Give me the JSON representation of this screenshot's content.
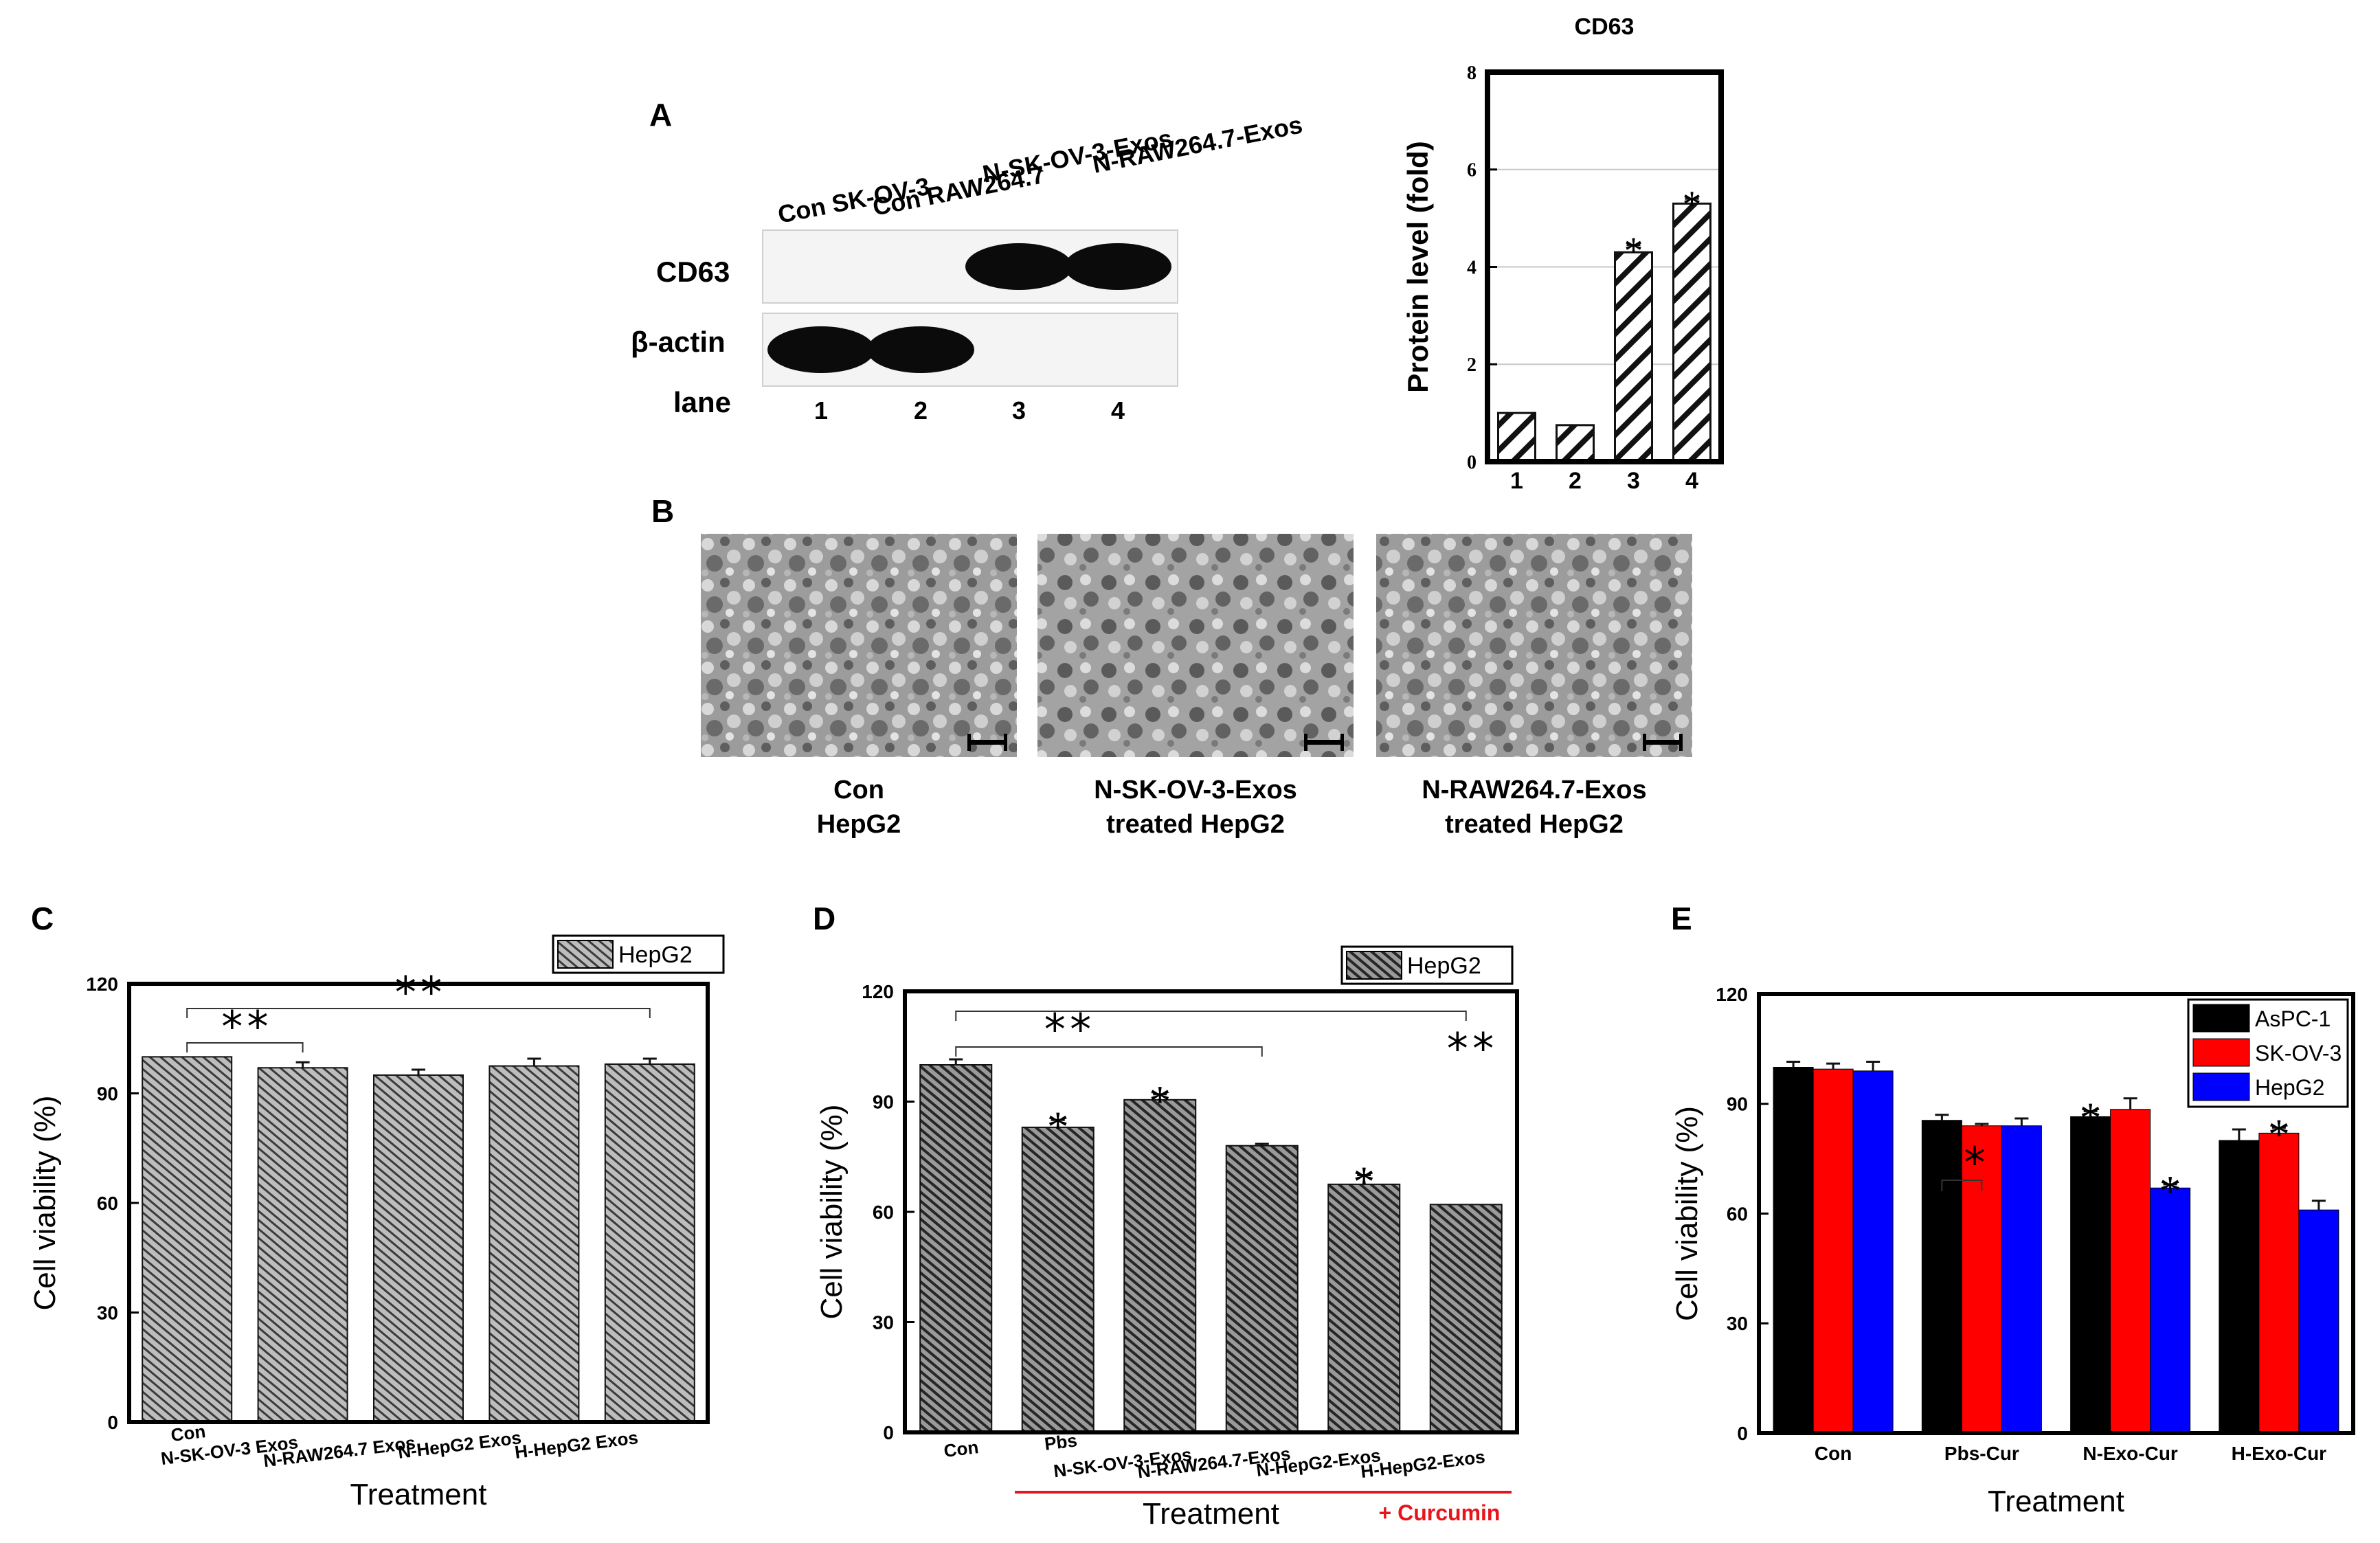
{
  "panel_labels": {
    "a": "A",
    "b": "B",
    "c": "C",
    "d": "D",
    "e": "E"
  },
  "blot": {
    "lane_names": [
      "Con SK-OV-3",
      "Con RAW264.7",
      "N-SK-OV-3-Exos",
      "N-RAW264.7-Exos"
    ],
    "row_labels": [
      "CD63",
      "β-actin"
    ],
    "lane_label": "lane",
    "lane_numbers": [
      "1",
      "2",
      "3",
      "4"
    ],
    "band_intensity": {
      "CD63": [
        0,
        0,
        1,
        1
      ],
      "beta_actin": [
        1,
        1,
        0,
        0
      ]
    }
  },
  "micrographs": {
    "captions": [
      [
        "Con",
        "HepG2"
      ],
      [
        "N-SK-OV-3-Exos",
        "treated HepG2"
      ],
      [
        "N-RAW264.7-Exos",
        "treated HepG2"
      ]
    ]
  },
  "chart_data": [
    {
      "id": "A-right",
      "type": "bar",
      "title": "CD63",
      "ylabel": "Protein level (fold)",
      "xlabel": "",
      "categories": [
        "1",
        "2",
        "3",
        "4"
      ],
      "values": [
        1.0,
        0.75,
        4.3,
        5.3
      ],
      "errors": [
        0,
        0,
        0.15,
        0.1
      ],
      "ylim": [
        0,
        8
      ],
      "yticks": [
        0,
        2,
        4,
        6,
        8
      ],
      "grid": true,
      "fill": "hatch",
      "annotations": [
        {
          "category": "3",
          "text": "*"
        },
        {
          "category": "4",
          "text": "*"
        }
      ]
    },
    {
      "id": "C",
      "type": "bar",
      "ylabel": "Cell viability (%)",
      "xlabel": "Treatment",
      "categories": [
        "Con",
        "N-SK-OV-3 Exos",
        "N-RAW264.7 Exos",
        "N-HepG2 Exos",
        "H-HepG2 Exos"
      ],
      "values": [
        100,
        97,
        95,
        97.5,
        98
      ],
      "errors": [
        0,
        1.5,
        1.5,
        2,
        1.5
      ],
      "ylim": [
        0,
        120
      ],
      "yticks": [
        0,
        30,
        60,
        90,
        120
      ],
      "legend": {
        "entries": [
          "HepG2"
        ],
        "placement": "top-right"
      },
      "brackets": [
        {
          "from": 0,
          "to": 1,
          "text": "**"
        },
        {
          "from": 0,
          "to": 4,
          "text": "**"
        }
      ]
    },
    {
      "id": "D",
      "type": "bar",
      "ylabel": "Cell viability (%)",
      "xlabel": "Treatment",
      "categories": [
        "Con",
        "Pbs",
        "N-SK-OV-3-Exos",
        "N-RAW264.7-Exos",
        "N-HepG2-Exos",
        "H-HepG2-Exos"
      ],
      "values": [
        100,
        83,
        90.5,
        78,
        67.5,
        62
      ],
      "errors": [
        1.5,
        2,
        1.5,
        0.5,
        2.5,
        0
      ],
      "ylim": [
        0,
        120
      ],
      "yticks": [
        0,
        30,
        60,
        90,
        120
      ],
      "legend": {
        "entries": [
          "HepG2"
        ],
        "placement": "top-right"
      },
      "annotations": [
        {
          "category": "Pbs",
          "text": "*"
        },
        {
          "category": "N-SK-OV-3-Exos",
          "text": "*"
        },
        {
          "category": "N-HepG2-Exos",
          "text": "*"
        }
      ],
      "brackets": [
        {
          "from": 0,
          "to": 3,
          "text": "**"
        },
        {
          "from": 0,
          "to": 5,
          "text": "**"
        }
      ],
      "group_label": {
        "text": "+ Curcumin",
        "color": "#e8141b"
      }
    },
    {
      "id": "E",
      "type": "bar",
      "ylabel": "Cell viability (%)",
      "xlabel": "Treatment",
      "categories": [
        "Con",
        "Pbs-Cur",
        "N-Exo-Cur",
        "H-Exo-Cur"
      ],
      "series": [
        {
          "name": "AsPC-1",
          "color": "#000000",
          "values": [
            100,
            85.5,
            86.5,
            80
          ],
          "errors": [
            1.5,
            1.5,
            1.5,
            3
          ]
        },
        {
          "name": "SK-OV-3",
          "color": "#ff0000",
          "values": [
            99.5,
            84,
            88.5,
            82
          ],
          "errors": [
            1.5,
            0.5,
            3,
            1.5
          ]
        },
        {
          "name": "HepG2",
          "color": "#0000ff",
          "values": [
            99,
            84,
            67,
            61
          ],
          "errors": [
            2.5,
            2,
            1,
            2.5
          ]
        }
      ],
      "ylim": [
        0,
        120
      ],
      "yticks": [
        0,
        30,
        60,
        90,
        120
      ],
      "legend": {
        "placement": "top-right"
      },
      "annotations": [
        {
          "category": "N-Exo-Cur",
          "series": "AsPC-1",
          "text": "*"
        },
        {
          "category": "N-Exo-Cur",
          "series": "HepG2",
          "text": "*"
        },
        {
          "category": "H-Exo-Cur",
          "series": "SK-OV-3",
          "text": "*"
        }
      ],
      "brackets": [
        {
          "category": "Pbs-Cur",
          "from_series": "AsPC-1",
          "to_series": "SK-OV-3",
          "text": "**"
        }
      ]
    }
  ]
}
